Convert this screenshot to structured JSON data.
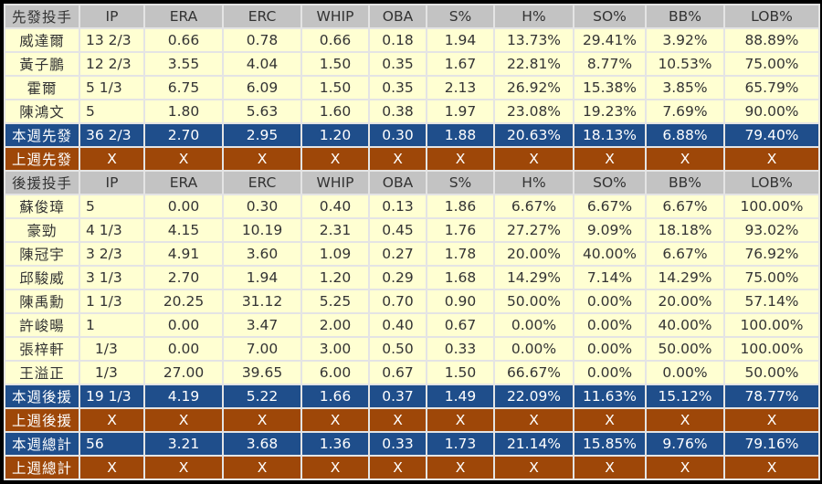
{
  "columns": [
    "IP",
    "ERA",
    "ERC",
    "WHIP",
    "OBA",
    "S%",
    "H%",
    "SO%",
    "BB%",
    "LOB%"
  ],
  "colors": {
    "header": "#c3c3c3",
    "player": "#ffffd2",
    "this_week": "#1f4e8b",
    "last_week": "#9e4708"
  },
  "rows": [
    {
      "type": "hdr",
      "name": "先發投手",
      "cells": [
        "IP",
        "ERA",
        "ERC",
        "WHIP",
        "OBA",
        "S%",
        "H%",
        "SO%",
        "BB%",
        "LOB%"
      ]
    },
    {
      "type": "pl",
      "name": "威達爾",
      "cells": [
        "13 2/3",
        "0.66",
        "0.78",
        "0.66",
        "0.18",
        "1.94",
        "13.73%",
        "29.41%",
        "3.92%",
        "88.89%"
      ]
    },
    {
      "type": "pl",
      "name": "黃子鵬",
      "cells": [
        "12 2/3",
        "3.55",
        "4.04",
        "1.50",
        "0.35",
        "1.67",
        "22.81%",
        "8.77%",
        "10.53%",
        "75.00%"
      ]
    },
    {
      "type": "pl",
      "name": "霍爾",
      "cells": [
        "5 1/3",
        "6.75",
        "6.09",
        "1.50",
        "0.35",
        "2.13",
        "26.92%",
        "15.38%",
        "3.85%",
        "65.79%"
      ]
    },
    {
      "type": "pl",
      "name": "陳鴻文",
      "cells": [
        "5",
        "1.80",
        "5.63",
        "1.60",
        "0.38",
        "1.97",
        "23.08%",
        "19.23%",
        "7.69%",
        "90.00%"
      ]
    },
    {
      "type": "cur",
      "name": "本週先發",
      "cells": [
        "36 2/3",
        "2.70",
        "2.95",
        "1.20",
        "0.30",
        "1.88",
        "20.63%",
        "18.13%",
        "6.88%",
        "79.40%"
      ]
    },
    {
      "type": "prev",
      "name": "上週先發",
      "cells": [
        "X",
        "X",
        "X",
        "X",
        "X",
        "X",
        "X",
        "X",
        "X",
        "X"
      ]
    },
    {
      "type": "hdr",
      "name": "後援投手",
      "cells": [
        "IP",
        "ERA",
        "ERC",
        "WHIP",
        "OBA",
        "S%",
        "H%",
        "SO%",
        "BB%",
        "LOB%"
      ]
    },
    {
      "type": "pl",
      "name": "蘇俊璋",
      "cells": [
        "5",
        "0.00",
        "0.30",
        "0.40",
        "0.13",
        "1.86",
        "6.67%",
        "6.67%",
        "6.67%",
        "100.00%"
      ]
    },
    {
      "type": "pl",
      "name": "豪勁",
      "cells": [
        "4 1/3",
        "4.15",
        "10.19",
        "2.31",
        "0.45",
        "1.76",
        "27.27%",
        "9.09%",
        "18.18%",
        "93.02%"
      ]
    },
    {
      "type": "pl",
      "name": "陳冠宇",
      "cells": [
        "3 2/3",
        "4.91",
        "3.60",
        "1.09",
        "0.27",
        "1.78",
        "20.00%",
        "40.00%",
        "6.67%",
        "76.92%"
      ]
    },
    {
      "type": "pl",
      "name": "邱駿威",
      "cells": [
        "3 1/3",
        "2.70",
        "1.94",
        "1.20",
        "0.29",
        "1.68",
        "14.29%",
        "7.14%",
        "14.29%",
        "75.00%"
      ]
    },
    {
      "type": "pl",
      "name": "陳禹勳",
      "cells": [
        "1 1/3",
        "20.25",
        "31.12",
        "5.25",
        "0.70",
        "0.90",
        "50.00%",
        "0.00%",
        "20.00%",
        "57.14%"
      ]
    },
    {
      "type": "pl",
      "name": "許峻暘",
      "cells": [
        "1",
        "0.00",
        "3.47",
        "2.00",
        "0.40",
        "0.67",
        "0.00%",
        "0.00%",
        "40.00%",
        "100.00%"
      ]
    },
    {
      "type": "pl",
      "name": "張梓軒",
      "cells": [
        "  1/3",
        "0.00",
        "7.00",
        "3.00",
        "0.50",
        "0.33",
        "0.00%",
        "0.00%",
        "50.00%",
        "100.00%"
      ]
    },
    {
      "type": "pl",
      "name": "王溢正",
      "cells": [
        "  1/3",
        "27.00",
        "39.65",
        "6.00",
        "0.67",
        "1.50",
        "66.67%",
        "0.00%",
        "0.00%",
        "50.00%"
      ]
    },
    {
      "type": "cur",
      "name": "本週後援",
      "cells": [
        "19 1/3",
        "4.19",
        "5.22",
        "1.66",
        "0.37",
        "1.49",
        "22.09%",
        "11.63%",
        "15.12%",
        "78.77%"
      ]
    },
    {
      "type": "prev",
      "name": "上週後援",
      "cells": [
        "X",
        "X",
        "X",
        "X",
        "X",
        "X",
        "X",
        "X",
        "X",
        "X"
      ]
    },
    {
      "type": "cur",
      "name": "本週總計",
      "cells": [
        "56",
        "3.21",
        "3.68",
        "1.36",
        "0.33",
        "1.73",
        "21.14%",
        "15.85%",
        "9.76%",
        "79.16%"
      ]
    },
    {
      "type": "prev",
      "name": "上週總計",
      "cells": [
        "X",
        "X",
        "X",
        "X",
        "X",
        "X",
        "X",
        "X",
        "X",
        "X"
      ]
    }
  ]
}
